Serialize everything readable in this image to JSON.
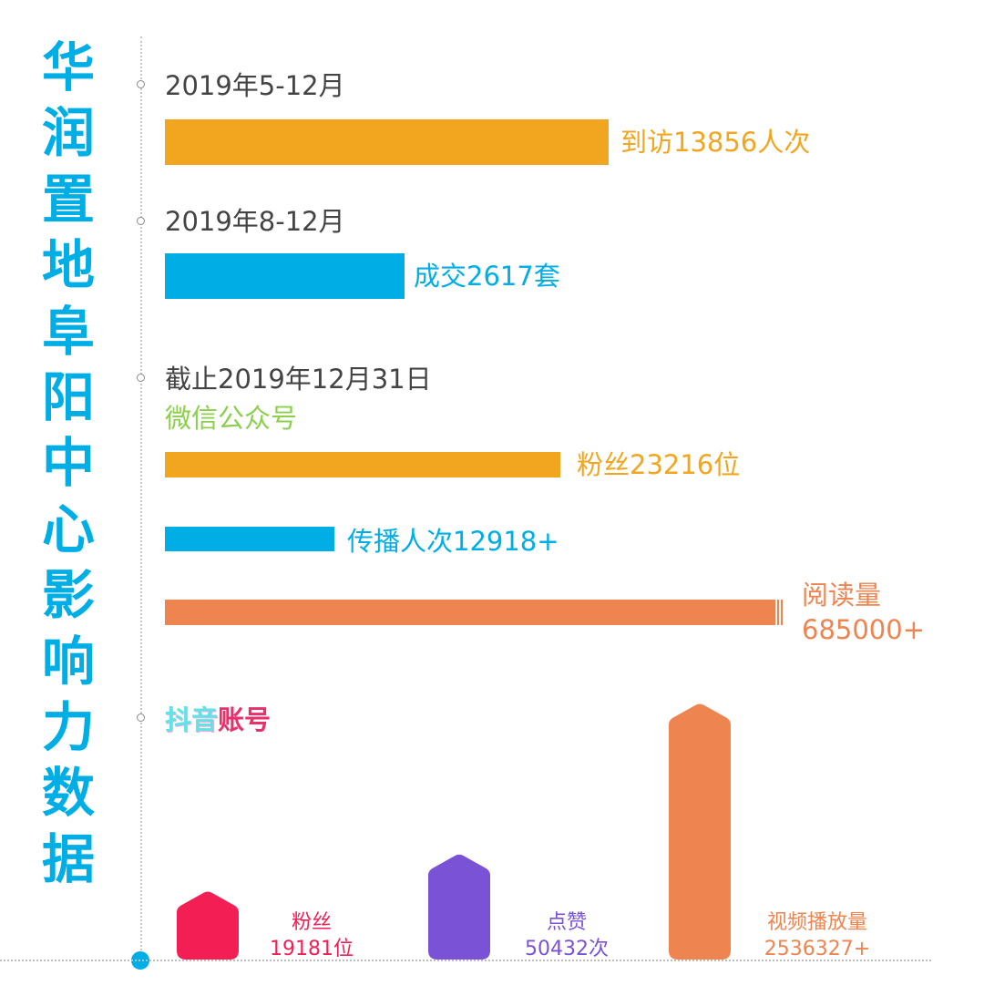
{
  "title_chars": [
    "华",
    "润",
    "置",
    "地",
    "阜",
    "阳",
    "中",
    "心",
    "影",
    "响",
    "力",
    "数",
    "据"
  ],
  "colors": {
    "accent": "#00aee6",
    "orange": "#f2a51e",
    "blue": "#00aee6",
    "coral": "#ee8550",
    "green": "#8ccf4d",
    "pink": "#f21e54",
    "purple": "#7a52d6"
  },
  "sections": {
    "visits": {
      "date": "2019年5-12月",
      "label": "到访13856人次"
    },
    "deals": {
      "date": "2019年8-12月",
      "label": "成交2617套"
    },
    "wechat": {
      "date": "截止2019年12月31日",
      "account": "微信公众号",
      "fans": "粉丝23216位",
      "spread": "传播人次12918+",
      "reads_line1": "阅读量",
      "reads_line2": "685000+"
    },
    "douyin": {
      "part1": "抖音",
      "part2": "账号"
    }
  },
  "chart_data": [
    {
      "type": "bar",
      "orientation": "horizontal",
      "title": "华润置地阜阳中心影响力数据",
      "categories": [
        "到访",
        "成交",
        "粉丝",
        "传播人次",
        "阅读量"
      ],
      "values": [
        13856,
        2617,
        23216,
        12918,
        685000
      ],
      "units": [
        "人次",
        "套",
        "位",
        "",
        ""
      ]
    },
    {
      "type": "bar",
      "title": "抖音账号",
      "series": [
        {
          "name": "粉丝",
          "value": 19181,
          "value_label": "19181位",
          "color": "#f21e54"
        },
        {
          "name": "点赞",
          "value": 50432,
          "value_label": "50432次",
          "color": "#7a52d6"
        },
        {
          "name": "视频播放量",
          "value": 2536327,
          "value_label": "2536327+",
          "color": "#ee8550"
        }
      ]
    }
  ]
}
